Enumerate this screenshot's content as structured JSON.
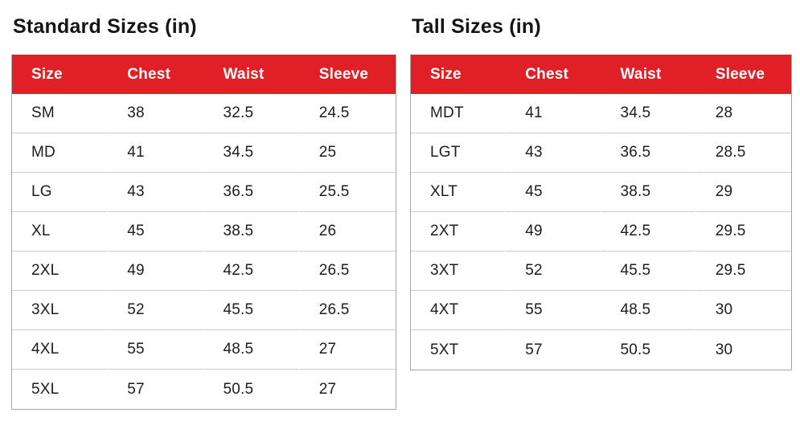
{
  "colors": {
    "header_bg": "#e01f26",
    "header_text": "#ffffff",
    "row_line": "#cbcbcb",
    "table_border": "#a6a6a6",
    "body_text": "#1d1d1d",
    "title_text": "#151515",
    "page_bg": "#ffffff"
  },
  "tables": [
    {
      "title": "Standard Sizes (in)",
      "columns": [
        "Size",
        "Chest",
        "Waist",
        "Sleeve"
      ],
      "rows": [
        [
          "SM",
          "38",
          "32.5",
          "24.5"
        ],
        [
          "MD",
          "41",
          "34.5",
          "25"
        ],
        [
          "LG",
          "43",
          "36.5",
          "25.5"
        ],
        [
          "XL",
          "45",
          "38.5",
          "26"
        ],
        [
          "2XL",
          "49",
          "42.5",
          "26.5"
        ],
        [
          "3XL",
          "52",
          "45.5",
          "26.5"
        ],
        [
          "4XL",
          "55",
          "48.5",
          "27"
        ],
        [
          "5XL",
          "57",
          "50.5",
          "27"
        ]
      ]
    },
    {
      "title": "Tall Sizes (in)",
      "columns": [
        "Size",
        "Chest",
        "Waist",
        "Sleeve"
      ],
      "rows": [
        [
          "MDT",
          "41",
          "34.5",
          "28"
        ],
        [
          "LGT",
          "43",
          "36.5",
          "28.5"
        ],
        [
          "XLT",
          "45",
          "38.5",
          "29"
        ],
        [
          "2XT",
          "49",
          "42.5",
          "29.5"
        ],
        [
          "3XT",
          "52",
          "45.5",
          "29.5"
        ],
        [
          "4XT",
          "55",
          "48.5",
          "30"
        ],
        [
          "5XT",
          "57",
          "50.5",
          "30"
        ]
      ]
    }
  ]
}
